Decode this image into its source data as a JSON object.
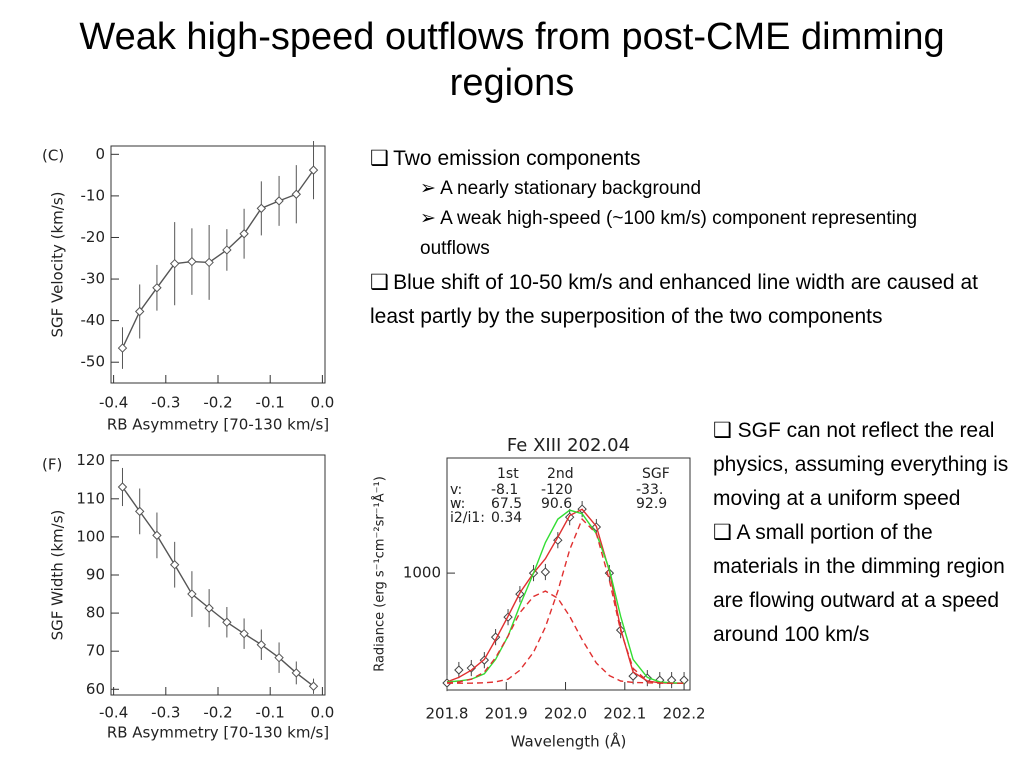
{
  "slide": {
    "title": "Weak high-speed outflows from post-CME dimming regions",
    "bullets": [
      {
        "text": "Two emission components",
        "sub": [
          "A nearly stationary background",
          "A weak high-speed (~100 km/s)  component representing outflows"
        ]
      },
      {
        "text": "Blue shift of 10-50 km/s and enhanced line width are caused at least partly by the superposition of the two components"
      }
    ],
    "side_bullets": [
      "SGF can not reflect the real physics, assuming everything is moving at a uniform speed",
      "A small portion of the materials in the dimming region are flowing outward at a speed around 100 km/s"
    ]
  },
  "chart_data": [
    {
      "type": "line",
      "panel_label": "(C)",
      "xlabel": "RB Asymmetry [70-130 km/s]",
      "ylabel": "SGF Velocity (km/s)",
      "x": [
        -0.383,
        -0.35,
        -0.317,
        -0.283,
        -0.25,
        -0.217,
        -0.183,
        -0.15,
        -0.117,
        -0.083,
        -0.05,
        -0.017
      ],
      "values": [
        -46.6,
        -37.8,
        -32.1,
        -26.3,
        -25.8,
        -26,
        -23,
        -19.1,
        -13,
        -11.2,
        -9.6,
        -3.8
      ],
      "errors": [
        5,
        6.5,
        5.5,
        10,
        8,
        9,
        5,
        6,
        6.5,
        6,
        7,
        7
      ],
      "color": "#555555",
      "xlim": [
        -0.405,
        0.005
      ],
      "xticks": [
        -0.4,
        -0.3,
        -0.2,
        -0.1,
        {
          "value": 0,
          "label": "0.0"
        }
      ],
      "ylim": [
        -55,
        2
      ],
      "yticks": [
        0,
        -10,
        -20,
        -30,
        -40,
        -50
      ]
    },
    {
      "type": "line",
      "panel_label": "(F)",
      "xlabel": "RB Asymmetry [70-130 km/s]",
      "ylabel": "SGF Width (km/s)",
      "x": [
        -0.383,
        -0.35,
        -0.317,
        -0.283,
        -0.25,
        -0.217,
        -0.183,
        -0.15,
        -0.117,
        -0.083,
        -0.05,
        -0.017
      ],
      "values": [
        113.1,
        106.7,
        100.4,
        92.7,
        85,
        81.3,
        77.6,
        74.6,
        71.7,
        68.3,
        64.3,
        60.8
      ],
      "errors": [
        5,
        6,
        6,
        6,
        6,
        5,
        4,
        4,
        4,
        4,
        3,
        2
      ],
      "color": "#555555",
      "xlim": [
        -0.405,
        0.005
      ],
      "xticks": [
        -0.4,
        -0.3,
        -0.2,
        -0.1,
        {
          "value": 0,
          "label": "0.0"
        }
      ],
      "ylim": [
        58.5,
        121.5
      ],
      "yticks": [
        60,
        70,
        80,
        90,
        100,
        110,
        120
      ]
    },
    {
      "type": "spectrum",
      "title": "Fe XIII 202.04",
      "xlabel": "Wavelength (Å)",
      "ylabel": "Radiance (erg s⁻¹cm⁻²sr⁻¹Å⁻¹)",
      "fit_table": {
        "columns": [
          "1st",
          "2nd",
          "SGF"
        ],
        "rows": [
          {
            "label": "v:",
            "cells": [
              "-8.1",
              "-120",
              "-33."
            ]
          },
          {
            "label": "w:",
            "cells": [
              "67.5",
              "90.6",
              "92.9"
            ]
          },
          {
            "label": "i2/i1:",
            "cells": [
              "0.34"
            ]
          }
        ]
      },
      "x": [
        201.8,
        201.82,
        201.841,
        201.863,
        201.882,
        201.903,
        201.923,
        201.946,
        201.966,
        201.987,
        202.007,
        202.028,
        202.052,
        202.074,
        202.093,
        202.114,
        202.138,
        202.159,
        202.179,
        202.2
      ],
      "series": [
        {
          "style": "markers",
          "color": "#444444",
          "values": [
            389,
            461,
            472,
            516,
            644,
            755,
            883,
            1000,
            1006,
            1183,
            1311,
            1356,
            1256,
            1000,
            683,
            427,
            416,
            405,
            405,
            405
          ],
          "errors": [
            45,
            45,
            45,
            45,
            45,
            45,
            45,
            45,
            45,
            45,
            45,
            45,
            45,
            45,
            45,
            45,
            45,
            45,
            45,
            45
          ]
        },
        {
          "style": "line",
          "color": "#e03030",
          "values": [
            395,
            420,
            460,
            520,
            630,
            760,
            890,
            1000,
            1080,
            1200,
            1320,
            1355,
            1260,
            1010,
            690,
            450,
            400,
            390,
            388,
            388
          ]
        },
        {
          "style": "line",
          "color": "#33dd33",
          "values": [
            395,
            400,
            410,
            440,
            520,
            650,
            820,
            1000,
            1170,
            1300,
            1350,
            1330,
            1220,
            1020,
            760,
            520,
            420,
            395,
            390,
            388
          ]
        },
        {
          "style": "dashed",
          "color": "#e03030",
          "values": [
            390,
            395,
            410,
            450,
            530,
            650,
            780,
            870,
            900,
            860,
            760,
            630,
            500,
            430,
            400,
            392,
            390,
            388,
            388,
            388
          ]
        },
        {
          "style": "dashed",
          "color": "#e03030",
          "values": [
            388,
            388,
            388,
            390,
            395,
            410,
            460,
            560,
            700,
            900,
            1130,
            1300,
            1220,
            960,
            680,
            470,
            400,
            390,
            388,
            388
          ]
        }
      ],
      "xlim": [
        201.8,
        202.21
      ],
      "xticks": [
        201.8,
        201.9,
        {
          "value": 202,
          "label": "202.0"
        },
        202.1,
        202.2
      ],
      "ylim": [
        350,
        1640
      ],
      "yticks": [
        1000
      ]
    }
  ]
}
